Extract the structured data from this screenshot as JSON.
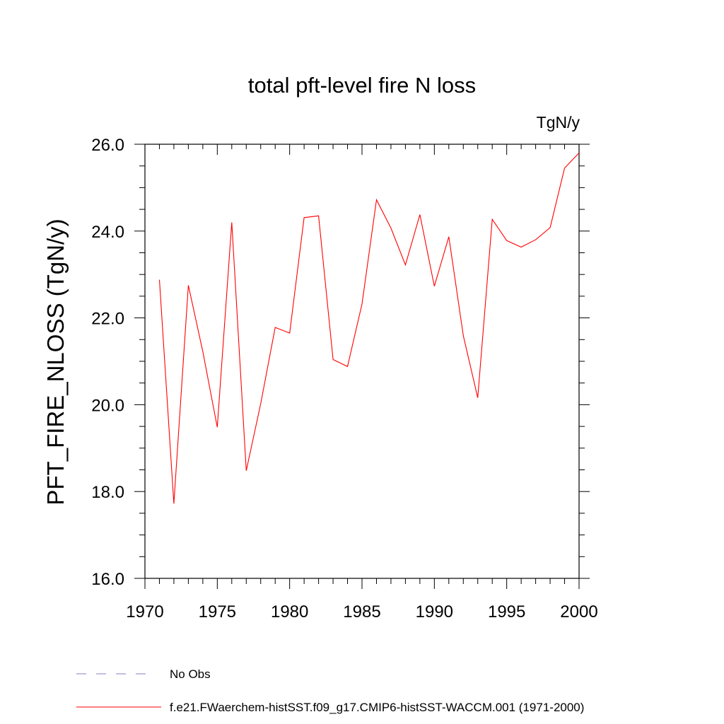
{
  "chart_data": {
    "type": "line",
    "title": "total pft-level fire N loss",
    "units_label": "TgN/y",
    "ylabel": "PFT_FIRE_NLOSS  (TgN/y)",
    "xlabel": "",
    "xlim": [
      1970,
      2000
    ],
    "ylim": [
      16.0,
      26.0
    ],
    "x_ticks": [
      1970,
      1975,
      1980,
      1985,
      1990,
      1995,
      2000
    ],
    "y_ticks": [
      "16.0",
      "18.0",
      "20.0",
      "22.0",
      "24.0",
      "26.0"
    ],
    "grid": false,
    "x": [
      1971,
      1972,
      1973,
      1974,
      1975,
      1976,
      1977,
      1978,
      1979,
      1980,
      1981,
      1982,
      1983,
      1984,
      1985,
      1986,
      1987,
      1988,
      1989,
      1990,
      1991,
      1992,
      1993,
      1994,
      1995,
      1996,
      1997,
      1998,
      1999,
      2000
    ],
    "series": [
      {
        "name": "f.e21.FWaerchem-histSST.f09_g17.CMIP6-histSST-WACCM.001 (1971-2000)",
        "color": "#ff0000",
        "values": [
          22.88,
          17.72,
          22.75,
          21.22,
          19.48,
          24.2,
          18.48,
          20.02,
          21.78,
          21.65,
          24.31,
          24.35,
          21.04,
          20.88,
          22.32,
          24.72,
          24.07,
          23.22,
          24.38,
          22.73,
          23.87,
          21.59,
          20.16,
          24.27,
          23.78,
          23.63,
          23.8,
          24.08,
          25.45,
          25.8
        ]
      }
    ],
    "legend": {
      "placement": "bottom-left",
      "entries": [
        {
          "label": "No Obs",
          "style": "dashed",
          "color": "#8a7fc7"
        },
        {
          "label": "f.e21.FWaerchem-histSST.f09_g17.CMIP6-histSST-WACCM.001 (1971-2000)",
          "style": "solid",
          "color": "#ff0000"
        }
      ]
    }
  }
}
